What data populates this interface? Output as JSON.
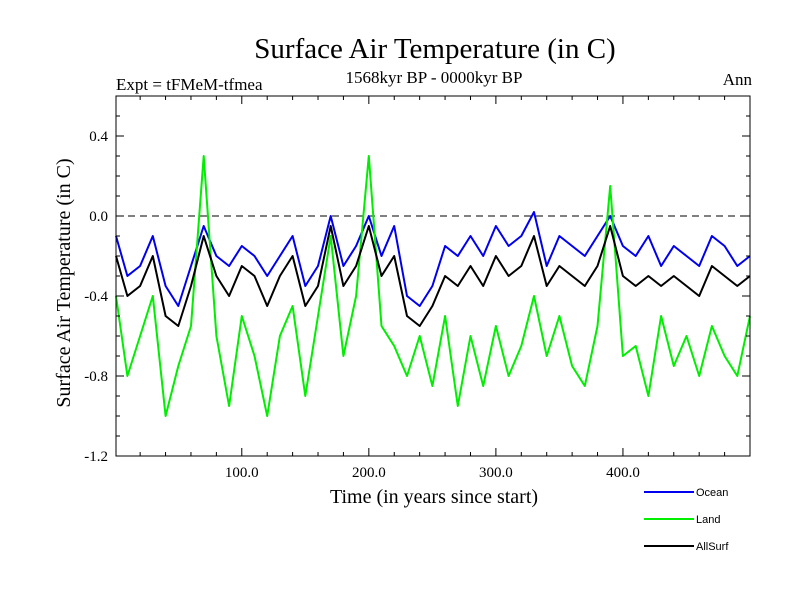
{
  "chart_data": {
    "type": "line",
    "title": "Surface Air Temperature (in C)",
    "subtitle_left": "Expt = tFMeM-tfmea",
    "subtitle_center": "1568kyr BP - 0000kyr BP",
    "subtitle_right": "Ann",
    "xlabel": "Time (in years since start)",
    "ylabel": "Surface Air Temperature (in C)",
    "xlim": [
      1,
      500
    ],
    "ylim": [
      -1.2,
      0.6
    ],
    "x_ticks": [
      100,
      200,
      300,
      400
    ],
    "x_tick_labels": [
      "100.0",
      "200.0",
      "300.0",
      "400.0"
    ],
    "y_ticks": [
      -1.2,
      -0.8,
      -0.4,
      0.0,
      0.4
    ],
    "y_tick_labels": [
      "-1.2",
      "-0.8",
      "-0.4",
      "0.0",
      "0.4"
    ],
    "reference_line": 0.0,
    "grid": false,
    "legend_position": "bottom-right, below plot",
    "colors": {
      "Ocean": "#0000ee",
      "Land": "#00ee00",
      "AllSurf": "#000000"
    },
    "series": [
      {
        "name": "Ocean",
        "x": [
          1,
          10,
          20,
          30,
          40,
          50,
          60,
          70,
          80,
          90,
          100,
          110,
          120,
          130,
          140,
          150,
          160,
          170,
          180,
          190,
          200,
          210,
          220,
          230,
          240,
          250,
          260,
          270,
          280,
          290,
          300,
          310,
          320,
          330,
          340,
          350,
          360,
          370,
          380,
          390,
          400,
          410,
          420,
          430,
          440,
          450,
          460,
          470,
          480,
          490,
          500
        ],
        "values": [
          -0.1,
          -0.3,
          -0.25,
          -0.1,
          -0.35,
          -0.45,
          -0.25,
          -0.05,
          -0.2,
          -0.25,
          -0.15,
          -0.2,
          -0.3,
          -0.2,
          -0.1,
          -0.35,
          -0.25,
          0.0,
          -0.25,
          -0.15,
          0.0,
          -0.2,
          -0.05,
          -0.4,
          -0.45,
          -0.35,
          -0.15,
          -0.2,
          -0.1,
          -0.2,
          -0.05,
          -0.15,
          -0.1,
          0.02,
          -0.25,
          -0.1,
          -0.15,
          -0.2,
          -0.1,
          0.0,
          -0.15,
          -0.2,
          -0.1,
          -0.25,
          -0.15,
          -0.2,
          -0.25,
          -0.1,
          -0.15,
          -0.25,
          -0.2
        ]
      },
      {
        "name": "Land",
        "x": [
          1,
          10,
          20,
          30,
          40,
          50,
          60,
          70,
          80,
          90,
          100,
          110,
          120,
          130,
          140,
          150,
          160,
          170,
          180,
          190,
          200,
          210,
          220,
          230,
          240,
          250,
          260,
          270,
          280,
          290,
          300,
          310,
          320,
          330,
          340,
          350,
          360,
          370,
          380,
          390,
          400,
          410,
          420,
          430,
          440,
          450,
          460,
          470,
          480,
          490,
          500
        ],
        "values": [
          -0.4,
          -0.8,
          -0.6,
          -0.4,
          -1.0,
          -0.75,
          -0.55,
          0.3,
          -0.6,
          -0.95,
          -0.5,
          -0.7,
          -1.0,
          -0.6,
          -0.45,
          -0.9,
          -0.5,
          -0.1,
          -0.7,
          -0.4,
          0.3,
          -0.55,
          -0.65,
          -0.8,
          -0.6,
          -0.85,
          -0.5,
          -0.95,
          -0.6,
          -0.85,
          -0.55,
          -0.8,
          -0.65,
          -0.4,
          -0.7,
          -0.5,
          -0.75,
          -0.85,
          -0.55,
          0.15,
          -0.7,
          -0.65,
          -0.9,
          -0.5,
          -0.75,
          -0.6,
          -0.8,
          -0.55,
          -0.7,
          -0.8,
          -0.5
        ]
      },
      {
        "name": "AllSurf",
        "x": [
          1,
          10,
          20,
          30,
          40,
          50,
          60,
          70,
          80,
          90,
          100,
          110,
          120,
          130,
          140,
          150,
          160,
          170,
          180,
          190,
          200,
          210,
          220,
          230,
          240,
          250,
          260,
          270,
          280,
          290,
          300,
          310,
          320,
          330,
          340,
          350,
          360,
          370,
          380,
          390,
          400,
          410,
          420,
          430,
          440,
          450,
          460,
          470,
          480,
          490,
          500
        ],
        "values": [
          -0.2,
          -0.4,
          -0.35,
          -0.2,
          -0.5,
          -0.55,
          -0.35,
          -0.1,
          -0.3,
          -0.4,
          -0.25,
          -0.3,
          -0.45,
          -0.3,
          -0.2,
          -0.45,
          -0.35,
          -0.05,
          -0.35,
          -0.25,
          -0.05,
          -0.3,
          -0.2,
          -0.5,
          -0.55,
          -0.45,
          -0.3,
          -0.35,
          -0.25,
          -0.35,
          -0.2,
          -0.3,
          -0.25,
          -0.1,
          -0.35,
          -0.25,
          -0.3,
          -0.35,
          -0.25,
          -0.05,
          -0.3,
          -0.35,
          -0.3,
          -0.35,
          -0.3,
          -0.35,
          -0.4,
          -0.25,
          -0.3,
          -0.35,
          -0.3
        ]
      }
    ]
  }
}
